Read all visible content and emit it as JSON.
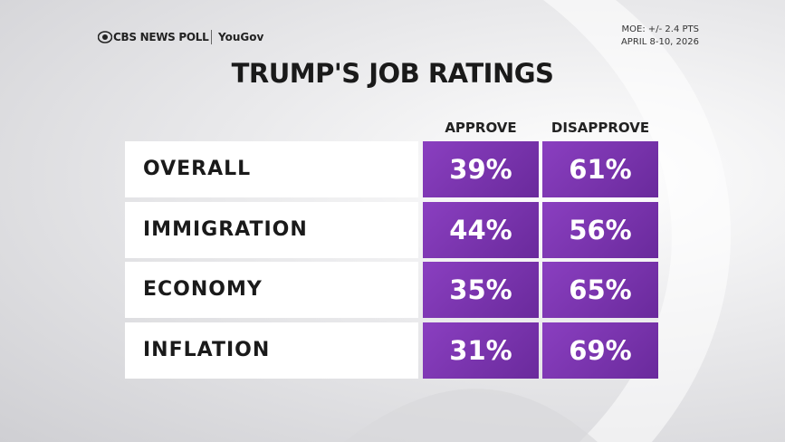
{
  "header": {
    "brand": "CBS NEWS POLL",
    "partner": "YouGov",
    "moe": "MOE: +/- 2.4 PTS",
    "dates": "APRIL 8-10, 2026"
  },
  "title": "TRUMP'S JOB RATINGS",
  "table": {
    "columns": [
      "APPROVE",
      "DISAPPROVE"
    ],
    "rows": [
      [
        "OVERALL",
        "39%",
        "61%"
      ],
      [
        "IMMIGRATION",
        "44%",
        "56%"
      ],
      [
        "ECONOMY",
        "35%",
        "65%"
      ],
      [
        "INFLATION",
        "31%",
        "69%"
      ]
    ]
  }
}
